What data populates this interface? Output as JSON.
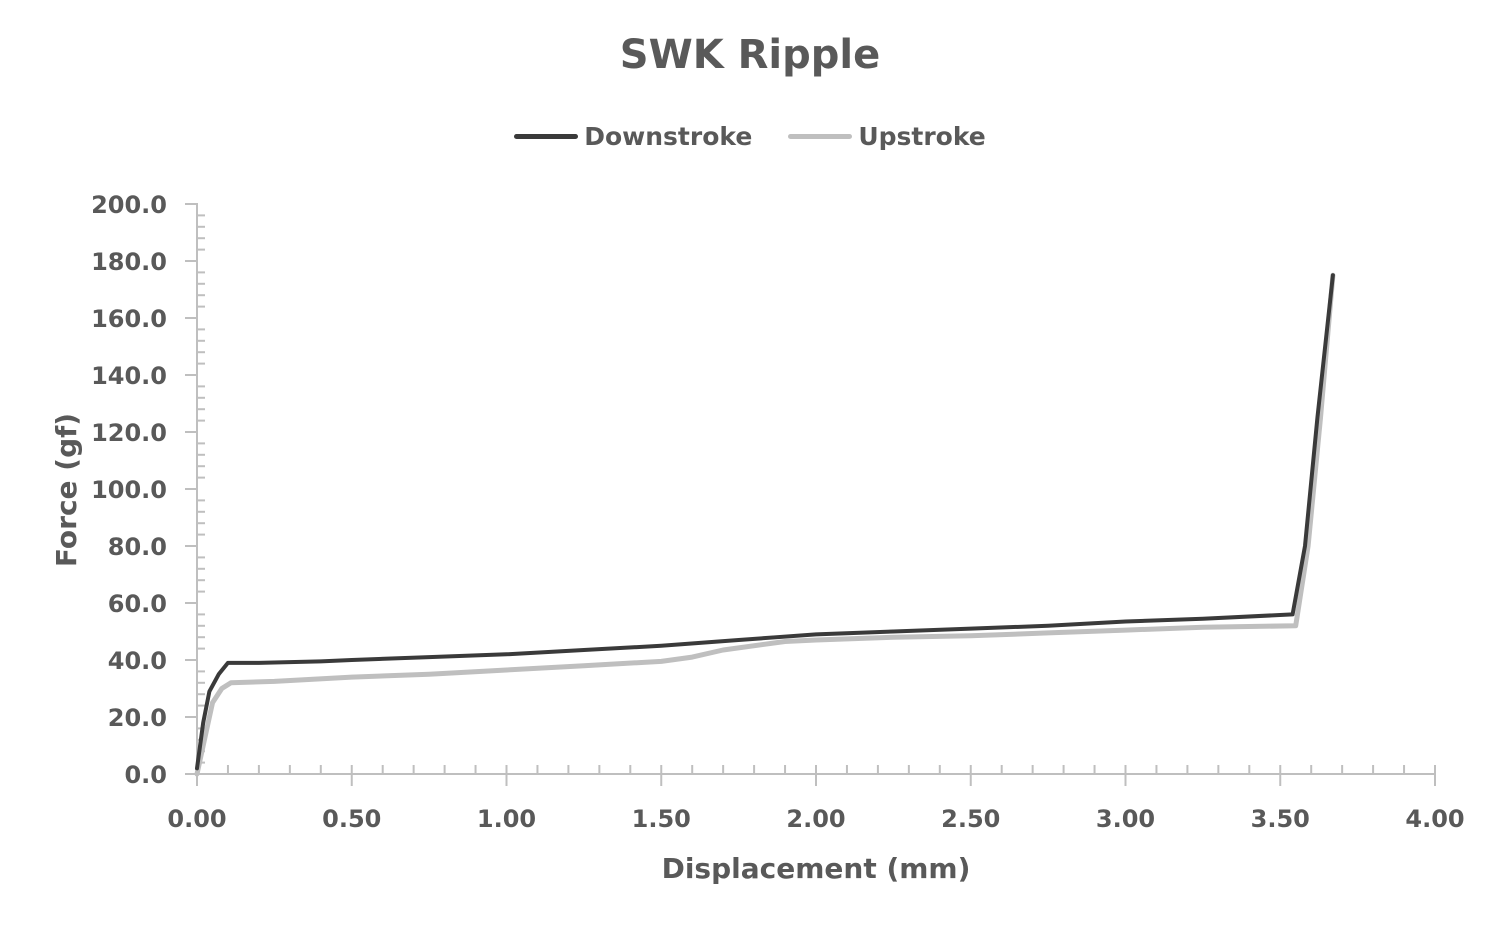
{
  "chart_data": {
    "type": "line",
    "title": "SWK Ripple",
    "xlabel": "Displacement (mm)",
    "ylabel": "Force (gf)",
    "xlim": [
      0,
      4
    ],
    "ylim": [
      0,
      200
    ],
    "x_ticks": [
      "0.00",
      "0.50",
      "1.00",
      "1.50",
      "2.00",
      "2.50",
      "3.00",
      "3.50",
      "4.00"
    ],
    "y_ticks": [
      "0.0",
      "20.0",
      "40.0",
      "60.0",
      "80.0",
      "100.0",
      "120.0",
      "140.0",
      "160.0",
      "180.0",
      "200.0"
    ],
    "grid": false,
    "legend_position": "top",
    "series": [
      {
        "name": "Downstroke",
        "color": "#3a3a3a",
        "points": [
          [
            0.0,
            2
          ],
          [
            0.02,
            18
          ],
          [
            0.04,
            29
          ],
          [
            0.07,
            35
          ],
          [
            0.1,
            39
          ],
          [
            0.2,
            39
          ],
          [
            0.4,
            39.5
          ],
          [
            0.5,
            40
          ],
          [
            0.75,
            41
          ],
          [
            1.0,
            42
          ],
          [
            1.25,
            43.5
          ],
          [
            1.5,
            45
          ],
          [
            1.75,
            47
          ],
          [
            2.0,
            49
          ],
          [
            2.25,
            50
          ],
          [
            2.5,
            51
          ],
          [
            2.75,
            52
          ],
          [
            3.0,
            53.5
          ],
          [
            3.25,
            54.5
          ],
          [
            3.54,
            56
          ],
          [
            3.58,
            80
          ],
          [
            3.62,
            125
          ],
          [
            3.67,
            175
          ]
        ]
      },
      {
        "name": "Upstroke",
        "color": "#bfbfbf",
        "points": [
          [
            0.0,
            0
          ],
          [
            0.02,
            10
          ],
          [
            0.05,
            25
          ],
          [
            0.08,
            30
          ],
          [
            0.11,
            32
          ],
          [
            0.25,
            32.5
          ],
          [
            0.5,
            34
          ],
          [
            0.75,
            35
          ],
          [
            1.0,
            36.5
          ],
          [
            1.25,
            38
          ],
          [
            1.5,
            39.5
          ],
          [
            1.6,
            41
          ],
          [
            1.7,
            43.5
          ],
          [
            1.9,
            46.5
          ],
          [
            2.0,
            47
          ],
          [
            2.25,
            48
          ],
          [
            2.5,
            48.5
          ],
          [
            2.75,
            49.5
          ],
          [
            3.0,
            50.5
          ],
          [
            3.25,
            51.5
          ],
          [
            3.55,
            52
          ],
          [
            3.59,
            80
          ],
          [
            3.63,
            125
          ],
          [
            3.67,
            175
          ]
        ]
      }
    ]
  },
  "legend": {
    "items": [
      {
        "label": "Downstroke",
        "color": "#3a3a3a"
      },
      {
        "label": "Upstroke",
        "color": "#bfbfbf"
      }
    ]
  }
}
